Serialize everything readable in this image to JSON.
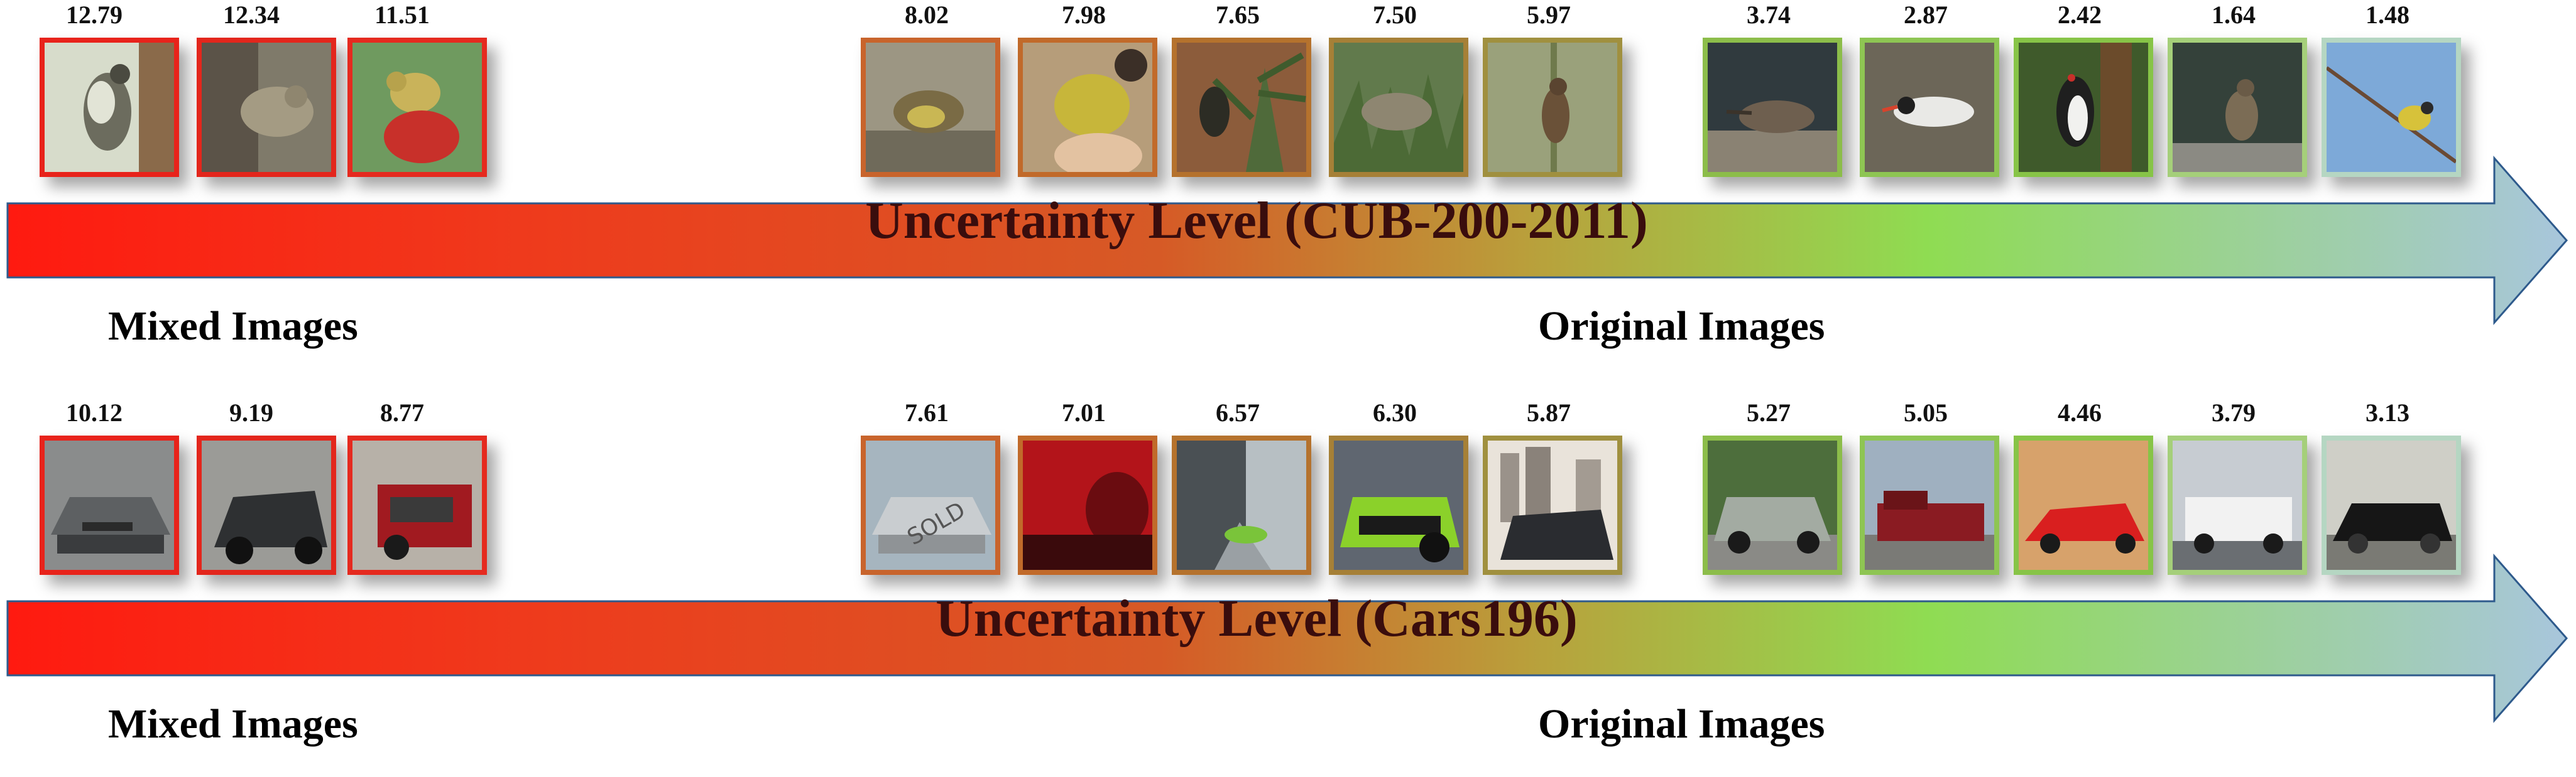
{
  "rows": [
    {
      "title": "Uncertainty Level (CUB-200-2011)",
      "mixed_label": "Mixed Images",
      "original_label": "Original Images",
      "items": [
        {
          "score": "12.79",
          "border": "#e8231b",
          "subject": "woodpecker-on-trunk"
        },
        {
          "score": "12.34",
          "border": "#e3261c",
          "subject": "mixed-sparrow"
        },
        {
          "score": "11.51",
          "border": "#e52a1f",
          "subject": "red-and-yellow-bird"
        },
        {
          "score": "8.02",
          "border": "#c8642c",
          "subject": "finch-on-ground"
        },
        {
          "score": "7.98",
          "border": "#c16a2a",
          "subject": "yellow-warbler-in-hand"
        },
        {
          "score": "7.65",
          "border": "#b5722d",
          "subject": "woodpecker-in-pine"
        },
        {
          "score": "7.50",
          "border": "#a68037",
          "subject": "bird-in-grass"
        },
        {
          "score": "5.97",
          "border": "#a0903f",
          "subject": "wren-on-reed"
        },
        {
          "score": "3.74",
          "border": "#8cbd4a",
          "subject": "sandpiper-on-pebbles"
        },
        {
          "score": "2.87",
          "border": "#8ec553",
          "subject": "tern-on-sand"
        },
        {
          "score": "2.42",
          "border": "#87c447",
          "subject": "woodpecker-on-feeder"
        },
        {
          "score": "1.64",
          "border": "#a5cf7a",
          "subject": "songbird-on-rock"
        },
        {
          "score": "1.48",
          "border": "#b5d6c2",
          "subject": "goldfinch-on-branch"
        }
      ]
    },
    {
      "title": "Uncertainty Level (Cars196)",
      "mixed_label": "Mixed Images",
      "original_label": "Original Images",
      "items": [
        {
          "score": "10.12",
          "border": "#e8231b",
          "subject": "mixed-sedan"
        },
        {
          "score": "9.19",
          "border": "#e3261c",
          "subject": "mixed-hatchback"
        },
        {
          "score": "8.77",
          "border": "#e52a1f",
          "subject": "mixed-red-jeep"
        },
        {
          "score": "7.61",
          "border": "#c8642c",
          "subject": "silver-car-sold-sign"
        },
        {
          "score": "7.01",
          "border": "#c16a2a",
          "subject": "red-car-taillight"
        },
        {
          "score": "6.57",
          "border": "#b5722d",
          "subject": "green-car-advert"
        },
        {
          "score": "6.30",
          "border": "#a68037",
          "subject": "green-sports-car-rear"
        },
        {
          "score": "5.87",
          "border": "#a0903f",
          "subject": "suv-city-backdrop"
        },
        {
          "score": "5.27",
          "border": "#8cbd4a",
          "subject": "silver-green-suv"
        },
        {
          "score": "5.05",
          "border": "#8ec553",
          "subject": "red-pickup-truck"
        },
        {
          "score": "4.46",
          "border": "#87c447",
          "subject": "red-ferrari"
        },
        {
          "score": "3.79",
          "border": "#a5cf7a",
          "subject": "white-van"
        },
        {
          "score": "3.13",
          "border": "#b5d6c2",
          "subject": "black-mustang"
        }
      ]
    }
  ],
  "colors": {
    "arrow_red": "#ff1a10",
    "arrow_orange": "#d65a26",
    "arrow_green": "#8fdc52",
    "arrow_end": "#a8c6dc",
    "arrow_outline": "#2e5a8c"
  }
}
